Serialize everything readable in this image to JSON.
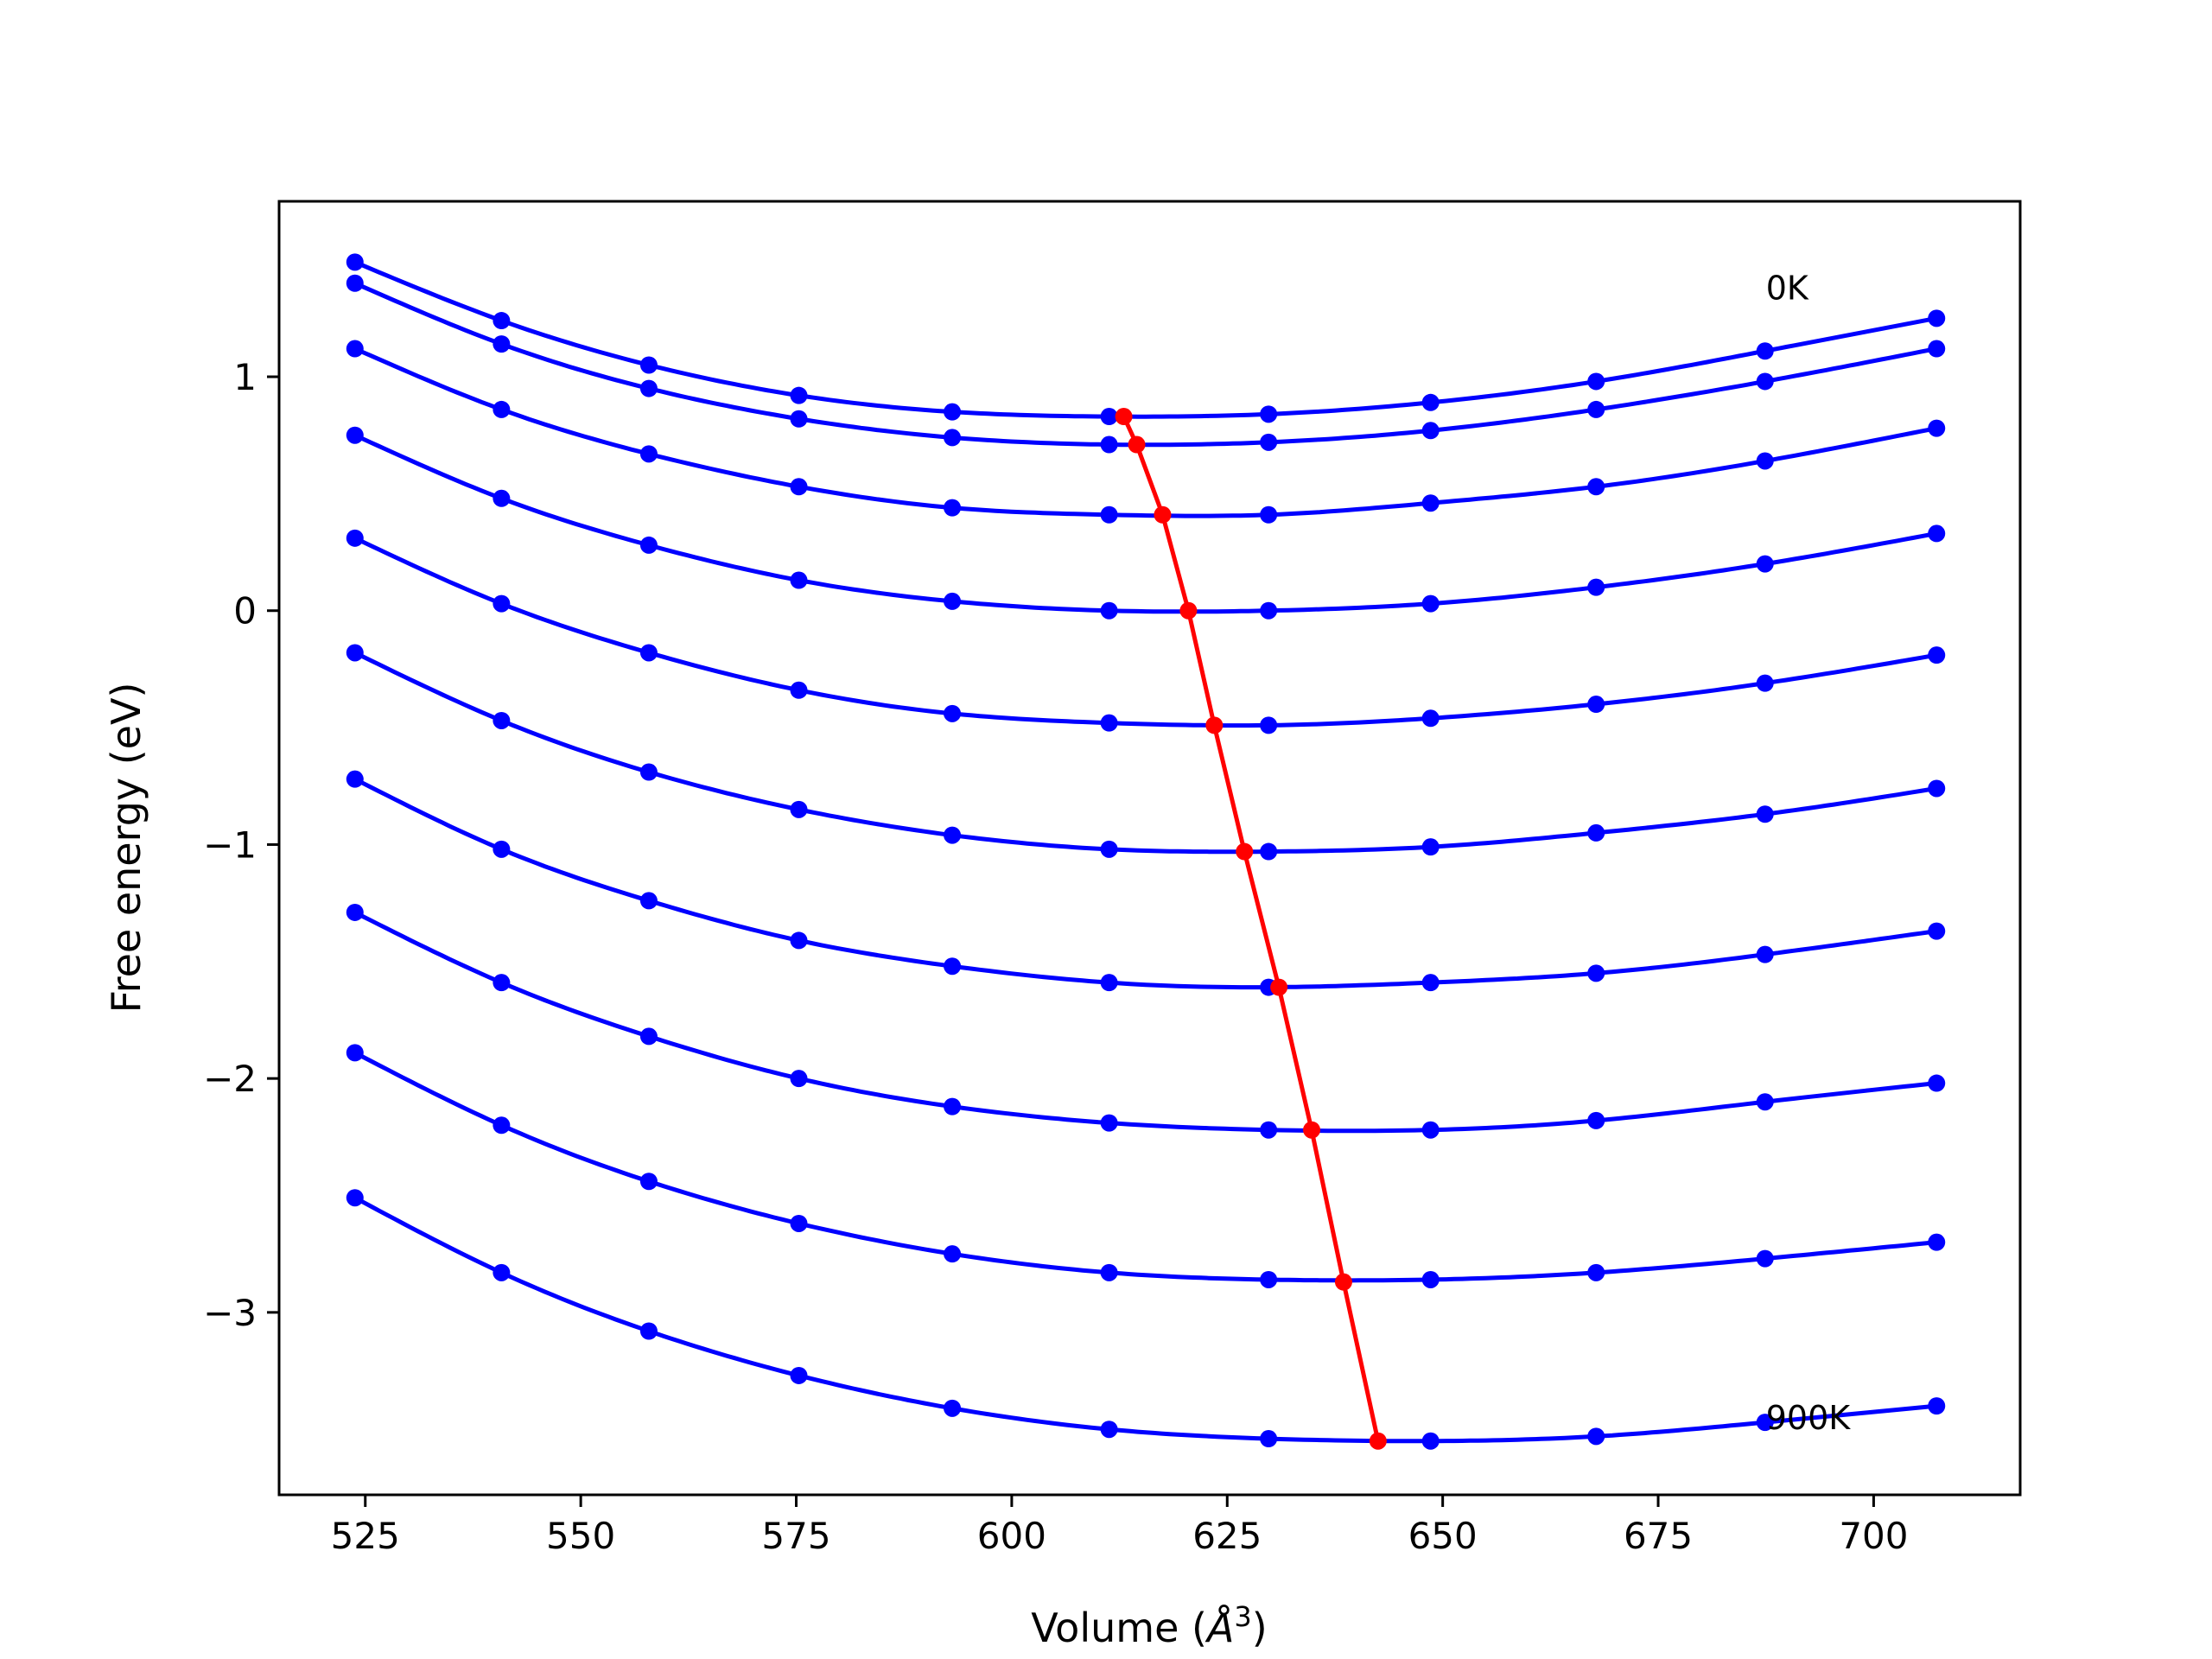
{
  "chart_data": {
    "type": "line",
    "title": "",
    "xlabel": "Volume (Å³)",
    "xlabel_main": "Volume (",
    "xlabel_unit": "Å",
    "xlabel_exp": "3",
    "xlabel_close": ")",
    "ylabel": "Free energy (eV)",
    "xlim": [
      515,
      717
    ],
    "ylim": [
      -3.78,
      1.75
    ],
    "xticks": [
      525,
      550,
      575,
      600,
      625,
      650,
      675,
      700
    ],
    "xtick_labels": [
      "525",
      "550",
      "575",
      "600",
      "625",
      "650",
      "675",
      "700"
    ],
    "yticks": [
      1,
      0,
      -1,
      -2,
      -3
    ],
    "ytick_labels": [
      "1",
      "0",
      "−1",
      "−2",
      "−3"
    ],
    "grid": false,
    "colors": {
      "curves": "#0000ff",
      "minima": "#ff0000"
    },
    "annotations": [
      {
        "text": "0K",
        "x": 687.5,
        "y": 1.33
      },
      {
        "text": "900K",
        "x": 687.5,
        "y": -3.5
      }
    ],
    "volumes": [
      523.8,
      540.8,
      557.9,
      575.3,
      593.1,
      611.3,
      629.8,
      648.6,
      667.8,
      687.4,
      707.3
    ],
    "series": [
      {
        "values": [
          1.49,
          1.24,
          1.05,
          0.92,
          0.85,
          0.83,
          0.84,
          0.89,
          0.98,
          1.11,
          1.25
        ]
      },
      {
        "values": [
          1.4,
          1.14,
          0.95,
          0.82,
          0.74,
          0.71,
          0.72,
          0.77,
          0.86,
          0.98,
          1.12
        ]
      },
      {
        "values": [
          1.12,
          0.86,
          0.67,
          0.53,
          0.44,
          0.41,
          0.41,
          0.46,
          0.53,
          0.64,
          0.78
        ]
      },
      {
        "values": [
          0.31,
          0.03,
          -0.18,
          -0.34,
          -0.44,
          -0.48,
          -0.49,
          -0.46,
          -0.4,
          -0.31,
          -0.19
        ]
      },
      {
        "values": [
          0.75,
          0.48,
          0.28,
          0.13,
          0.04,
          0.0,
          0.0,
          0.03,
          0.1,
          0.2,
          0.33
        ]
      },
      {
        "values": [
          -0.72,
          -1.02,
          -1.24,
          -1.41,
          -1.52,
          -1.59,
          -1.61,
          -1.59,
          -1.55,
          -1.47,
          -1.37
        ]
      },
      {
        "values": [
          -0.18,
          -0.47,
          -0.69,
          -0.85,
          -0.96,
          -1.02,
          -1.03,
          -1.01,
          -0.95,
          -0.87,
          -0.76
        ]
      },
      {
        "values": [
          -1.29,
          -1.59,
          -1.82,
          -2.0,
          -2.12,
          -2.19,
          -2.22,
          -2.22,
          -2.18,
          -2.1,
          -2.02
        ]
      },
      {
        "values": [
          -1.89,
          -2.2,
          -2.44,
          -2.62,
          -2.75,
          -2.83,
          -2.86,
          -2.86,
          -2.83,
          -2.77,
          -2.7
        ]
      },
      {
        "values": [
          -2.51,
          -2.83,
          -3.08,
          -3.27,
          -3.41,
          -3.5,
          -3.54,
          -3.55,
          -3.53,
          -3.47,
          -3.4
        ]
      }
    ],
    "minima": {
      "x": [
        613.0,
        614.5,
        617.5,
        620.5,
        623.5,
        627.0,
        631.0,
        634.8,
        638.5,
        642.5
      ],
      "y": [
        0.83,
        0.71,
        0.41,
        0.0,
        -0.49,
        -1.03,
        -1.61,
        -2.22,
        -2.87,
        -3.55
      ]
    }
  }
}
